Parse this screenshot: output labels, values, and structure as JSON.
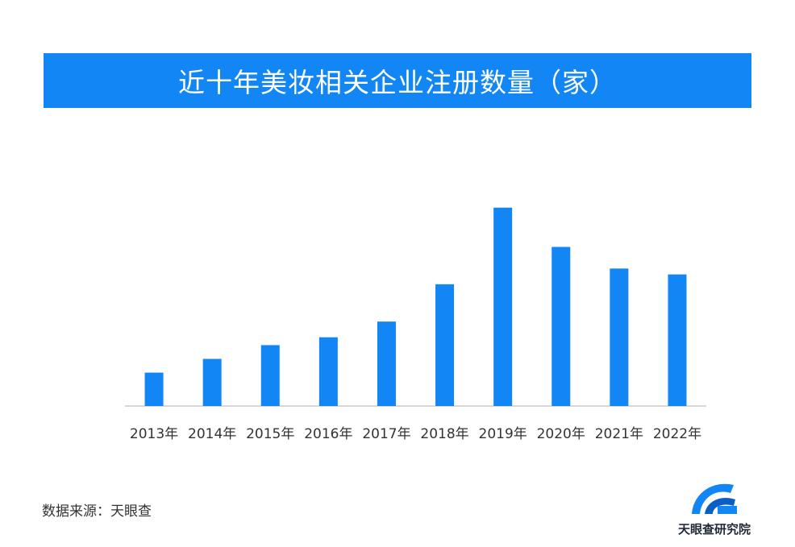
{
  "header": {
    "title": "近十年美妆相关企业注册数量（家）"
  },
  "footer": {
    "source": "数据来源：天眼查",
    "logo_text": "天眼查研究院"
  },
  "colors": {
    "accent": "#1286f4",
    "bar": "#1286f4",
    "axis": "#cccccc",
    "text": "#333333"
  },
  "chart_data": {
    "type": "bar",
    "title": "近十年美妆相关企业注册数量（家）",
    "categories": [
      "2013年",
      "2014年",
      "2015年",
      "2016年",
      "2017年",
      "2018年",
      "2019年",
      "2020年",
      "2021年",
      "2022年"
    ],
    "values": [
      17,
      24,
      31,
      35,
      43,
      62,
      101,
      81,
      70,
      67
    ],
    "xlabel": "",
    "ylabel": "",
    "ylim": [
      0,
      105
    ],
    "grid": false,
    "legend": "none"
  }
}
